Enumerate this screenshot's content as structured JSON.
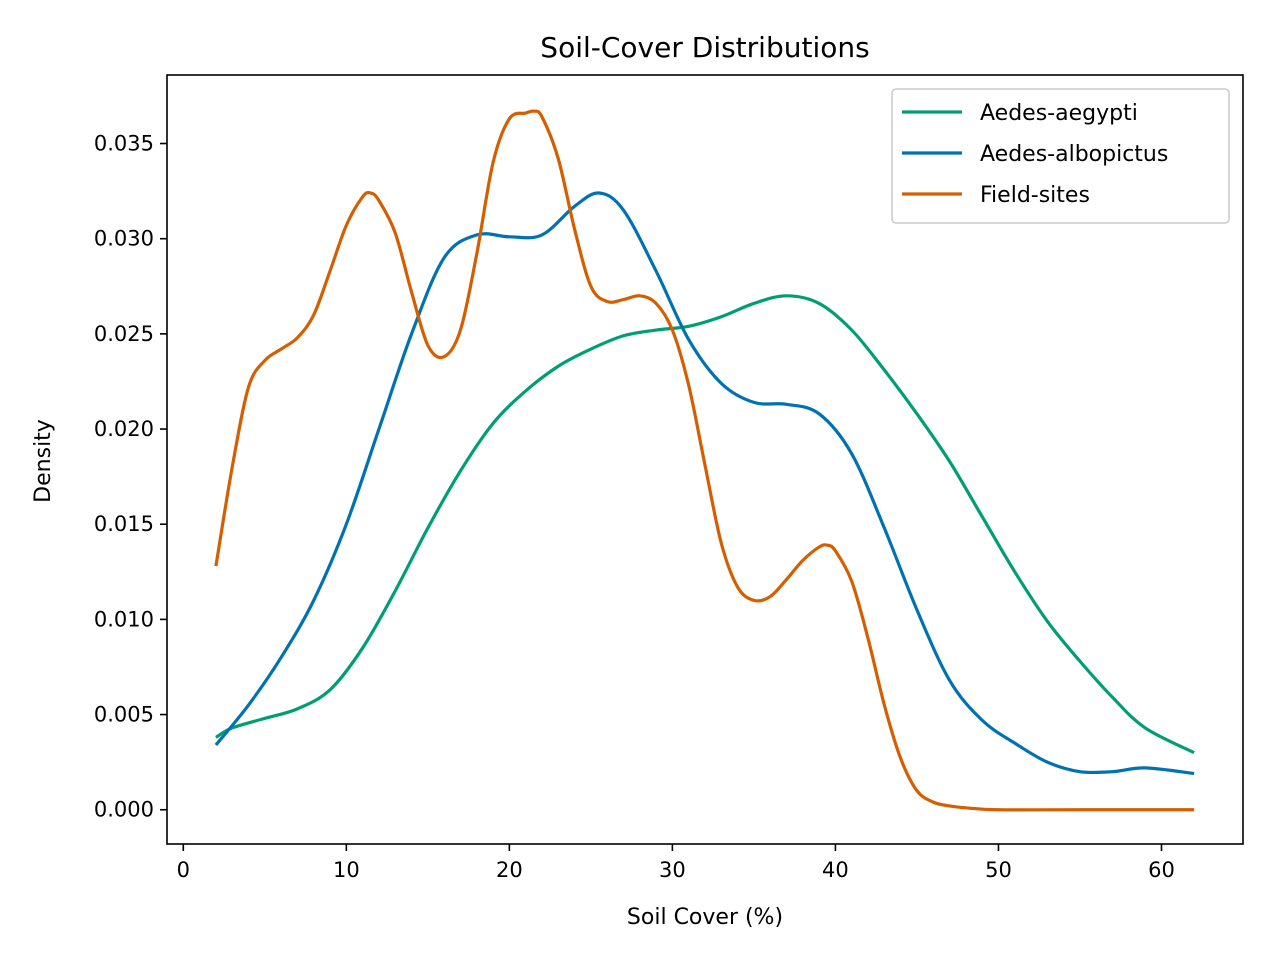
{
  "chart_data": {
    "type": "line",
    "title": "Soil-Cover Distributions",
    "xlabel": "Soil Cover (%)",
    "ylabel": "Density",
    "xlim": [
      -1,
      65
    ],
    "ylim": [
      -0.0018,
      0.0386
    ],
    "xticks": [
      0,
      10,
      20,
      30,
      40,
      50,
      60
    ],
    "xtick_labels": [
      "0",
      "10",
      "20",
      "30",
      "40",
      "50",
      "60"
    ],
    "yticks": [
      0.0,
      0.005,
      0.01,
      0.015,
      0.02,
      0.025,
      0.03,
      0.035
    ],
    "ytick_labels": [
      "0.000",
      "0.005",
      "0.010",
      "0.015",
      "0.020",
      "0.025",
      "0.030",
      "0.035"
    ],
    "grid": false,
    "legend_position": "top-right",
    "series": [
      {
        "name": "Aedes-aegypti",
        "color": "#009E73",
        "x": [
          2,
          3,
          5,
          7,
          9,
          11,
          13,
          15,
          17,
          19,
          21,
          23,
          25,
          27,
          29,
          31,
          33,
          35,
          37,
          39,
          41,
          43,
          45,
          47,
          49,
          51,
          53,
          55,
          57,
          59,
          62
        ],
        "y": [
          0.0038,
          0.0043,
          0.0048,
          0.0053,
          0.0063,
          0.0085,
          0.0115,
          0.0148,
          0.0178,
          0.0203,
          0.022,
          0.0233,
          0.0242,
          0.0249,
          0.0252,
          0.0254,
          0.0259,
          0.0266,
          0.027,
          0.0266,
          0.0252,
          0.0231,
          0.0208,
          0.0183,
          0.0154,
          0.0125,
          0.0099,
          0.0078,
          0.0059,
          0.0043,
          0.003
        ]
      },
      {
        "name": "Aedes-albopictus",
        "color": "#0072B2",
        "x": [
          2,
          4,
          6,
          8,
          10,
          12,
          14,
          16,
          18,
          20,
          22,
          24,
          25.5,
          27,
          29,
          31,
          33,
          35,
          37,
          39,
          41,
          43,
          45,
          47,
          49,
          51,
          53,
          55,
          57,
          59,
          62
        ],
        "y": [
          0.0034,
          0.0055,
          0.008,
          0.011,
          0.015,
          0.02,
          0.025,
          0.029,
          0.0302,
          0.0301,
          0.0302,
          0.0317,
          0.0324,
          0.0315,
          0.0283,
          0.0247,
          0.0224,
          0.0214,
          0.0213,
          0.0208,
          0.0187,
          0.0148,
          0.0105,
          0.0068,
          0.0047,
          0.0035,
          0.0025,
          0.002,
          0.002,
          0.0022,
          0.0019
        ]
      },
      {
        "name": "Field-sites",
        "color": "#D55E00",
        "x": [
          2,
          3,
          4,
          5,
          6,
          7,
          8,
          9,
          10,
          11,
          11.5,
          12,
          13,
          14,
          15,
          16,
          17,
          18,
          19,
          20,
          21,
          21.5,
          22,
          23,
          24,
          25,
          26,
          27,
          28,
          29,
          30,
          31,
          32,
          33,
          34,
          35,
          36,
          37,
          38,
          39,
          39.5,
          40,
          41,
          42,
          43,
          44,
          45,
          46,
          47,
          48,
          50,
          55,
          62
        ],
        "y": [
          0.0128,
          0.018,
          0.0222,
          0.0236,
          0.0242,
          0.0248,
          0.026,
          0.0283,
          0.0307,
          0.0322,
          0.0324,
          0.032,
          0.0303,
          0.0272,
          0.0244,
          0.0238,
          0.0252,
          0.0292,
          0.034,
          0.0363,
          0.0366,
          0.0367,
          0.0364,
          0.0342,
          0.0305,
          0.0275,
          0.0267,
          0.0268,
          0.027,
          0.0266,
          0.0252,
          0.0223,
          0.0181,
          0.014,
          0.0117,
          0.011,
          0.0112,
          0.0121,
          0.0131,
          0.0138,
          0.0139,
          0.0136,
          0.012,
          0.009,
          0.0055,
          0.0027,
          0.001,
          0.0004,
          0.0002,
          0.0001,
          0.0,
          0.0,
          0.0
        ]
      }
    ]
  }
}
